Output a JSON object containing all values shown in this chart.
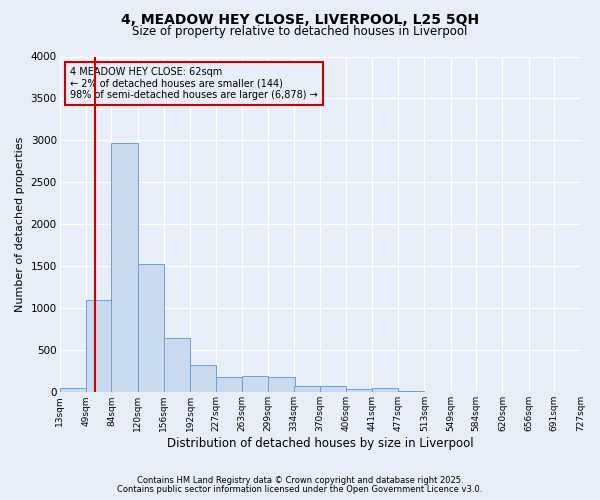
{
  "title": "4, MEADOW HEY CLOSE, LIVERPOOL, L25 5QH",
  "subtitle": "Size of property relative to detached houses in Liverpool",
  "xlabel": "Distribution of detached houses by size in Liverpool",
  "ylabel": "Number of detached properties",
  "footnote1": "Contains HM Land Registry data © Crown copyright and database right 2025.",
  "footnote2": "Contains public sector information licensed under the Open Government Licence v3.0.",
  "bar_color": "#c9d9ee",
  "bar_edge_color": "#6ca0d4",
  "background_color": "#e8eef8",
  "grid_color": "#ffffff",
  "bins": [
    13,
    49,
    84,
    120,
    156,
    192,
    227,
    263,
    299,
    334,
    370,
    406,
    441,
    477,
    513,
    549,
    584,
    620,
    656,
    691,
    727
  ],
  "values": [
    50,
    1100,
    2970,
    1530,
    650,
    330,
    185,
    190,
    185,
    75,
    70,
    35,
    50,
    20,
    5,
    3,
    2,
    1,
    1,
    0
  ],
  "tick_labels": [
    "13sqm",
    "49sqm",
    "84sqm",
    "120sqm",
    "156sqm",
    "192sqm",
    "227sqm",
    "263sqm",
    "299sqm",
    "334sqm",
    "370sqm",
    "406sqm",
    "441sqm",
    "477sqm",
    "513sqm",
    "549sqm",
    "584sqm",
    "620sqm",
    "656sqm",
    "691sqm",
    "727sqm"
  ],
  "vline_x": 62,
  "vline_color": "#cc0000",
  "annotation_text": "4 MEADOW HEY CLOSE: 62sqm\n← 2% of detached houses are smaller (144)\n98% of semi-detached houses are larger (6,878) →",
  "annotation_box_color": "#cc0000",
  "ylim": [
    0,
    4000
  ],
  "yticks": [
    0,
    500,
    1000,
    1500,
    2000,
    2500,
    3000,
    3500,
    4000
  ],
  "title_fontsize": 10,
  "subtitle_fontsize": 8.5,
  "ylabel_fontsize": 8,
  "xlabel_fontsize": 8.5,
  "footnote_fontsize": 6,
  "annotation_fontsize": 7,
  "xtick_fontsize": 6.5,
  "ytick_fontsize": 7.5
}
